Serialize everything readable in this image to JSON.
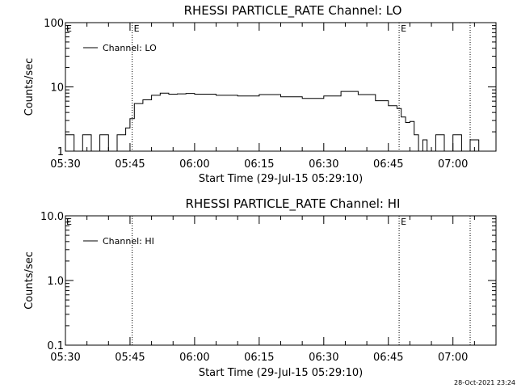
{
  "chart_data": [
    {
      "type": "line",
      "title": "RHESSI PARTICLE_RATE Channel: LO",
      "xlabel": "Start Time (29-Jul-15 05:29:10)",
      "ylabel": "Counts/sec",
      "y_scale": "log",
      "ylim": [
        1,
        100
      ],
      "y_ticks": [
        "1",
        "10",
        "100"
      ],
      "xlim": [
        "05:30",
        "07:10"
      ],
      "x_ticks": [
        "05:30",
        "05:45",
        "06:00",
        "06:15",
        "06:30",
        "06:45",
        "07:00"
      ],
      "legend": {
        "label": "Channel: LO",
        "position": "top-left"
      },
      "markers": [
        {
          "time": "05:45:30",
          "label": "E"
        },
        {
          "time": "06:47:30",
          "label": "E"
        },
        {
          "time": "07:04:00",
          "label": ""
        }
      ],
      "series": [
        {
          "name": "Channel: LO",
          "x": [
            "05:30",
            "05:32",
            "05:34",
            "05:36",
            "05:38",
            "05:40",
            "05:42",
            "05:44",
            "05:45",
            "05:46",
            "05:48",
            "05:50",
            "05:52",
            "05:54",
            "05:56",
            "05:58",
            "06:00",
            "06:05",
            "06:10",
            "06:15",
            "06:20",
            "06:25",
            "06:30",
            "06:34",
            "06:38",
            "06:42",
            "06:45",
            "06:47",
            "06:48",
            "06:49",
            "06:50",
            "06:51",
            "06:52",
            "06:53",
            "06:54",
            "06:56",
            "06:58",
            "07:00",
            "07:02",
            "07:04",
            "07:06"
          ],
          "y": [
            1.8,
            1.0,
            1.8,
            1.0,
            1.8,
            1.0,
            1.8,
            2.3,
            3.2,
            5.5,
            6.3,
            7.4,
            8.0,
            7.7,
            7.8,
            7.9,
            7.7,
            7.4,
            7.2,
            7.6,
            7.0,
            6.6,
            7.2,
            8.5,
            7.6,
            6.1,
            5.1,
            4.6,
            3.4,
            2.8,
            2.9,
            1.8,
            1.0,
            1.5,
            1.0,
            1.8,
            1.0,
            1.8,
            1.0,
            1.5,
            1.0
          ]
        }
      ]
    },
    {
      "type": "line",
      "title": "RHESSI PARTICLE_RATE Channel: HI",
      "xlabel": "Start Time (29-Jul-15 05:29:10)",
      "ylabel": "Counts/sec",
      "y_scale": "log",
      "ylim": [
        0.1,
        10
      ],
      "y_ticks": [
        "0.1",
        "1.0",
        "10.0"
      ],
      "xlim": [
        "05:30",
        "07:10"
      ],
      "x_ticks": [
        "05:30",
        "05:45",
        "06:00",
        "06:15",
        "06:30",
        "06:45",
        "07:00"
      ],
      "legend": {
        "label": "Channel: HI",
        "position": "top-left"
      },
      "markers": [
        {
          "time": "05:45:30",
          "label": ""
        },
        {
          "time": "06:47:30",
          "label": "E"
        },
        {
          "time": "07:04:00",
          "label": ""
        }
      ],
      "series": [
        {
          "name": "Channel: HI",
          "x": [],
          "y": []
        }
      ]
    }
  ],
  "footer": {
    "stamp": "28-Oct-2021 23:24"
  },
  "colors": {
    "background": "#ffffff",
    "ink": "#000000"
  }
}
